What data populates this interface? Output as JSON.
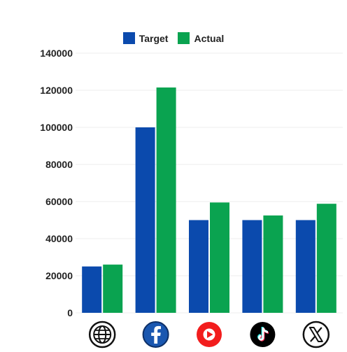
{
  "chart_data": {
    "type": "bar",
    "categories": [
      "Website",
      "Facebook",
      "YouTube",
      "TikTok",
      "X"
    ],
    "category_icons": [
      "globe-icon",
      "facebook-icon",
      "youtube-icon",
      "tiktok-icon",
      "x-icon"
    ],
    "series": [
      {
        "name": "Target",
        "color": "#0b4aad",
        "values": [
          25000,
          100000,
          50000,
          50000,
          50000
        ]
      },
      {
        "name": "Actual",
        "color": "#0aa350",
        "values": [
          26000,
          121500,
          59500,
          52500,
          58800
        ]
      }
    ],
    "y_ticks": [
      "0",
      "20000",
      "40000",
      "60000",
      "80000",
      "100000",
      "120000",
      "140000"
    ],
    "ylim": [
      0,
      140000
    ],
    "legend": "top-center",
    "grid": true
  }
}
